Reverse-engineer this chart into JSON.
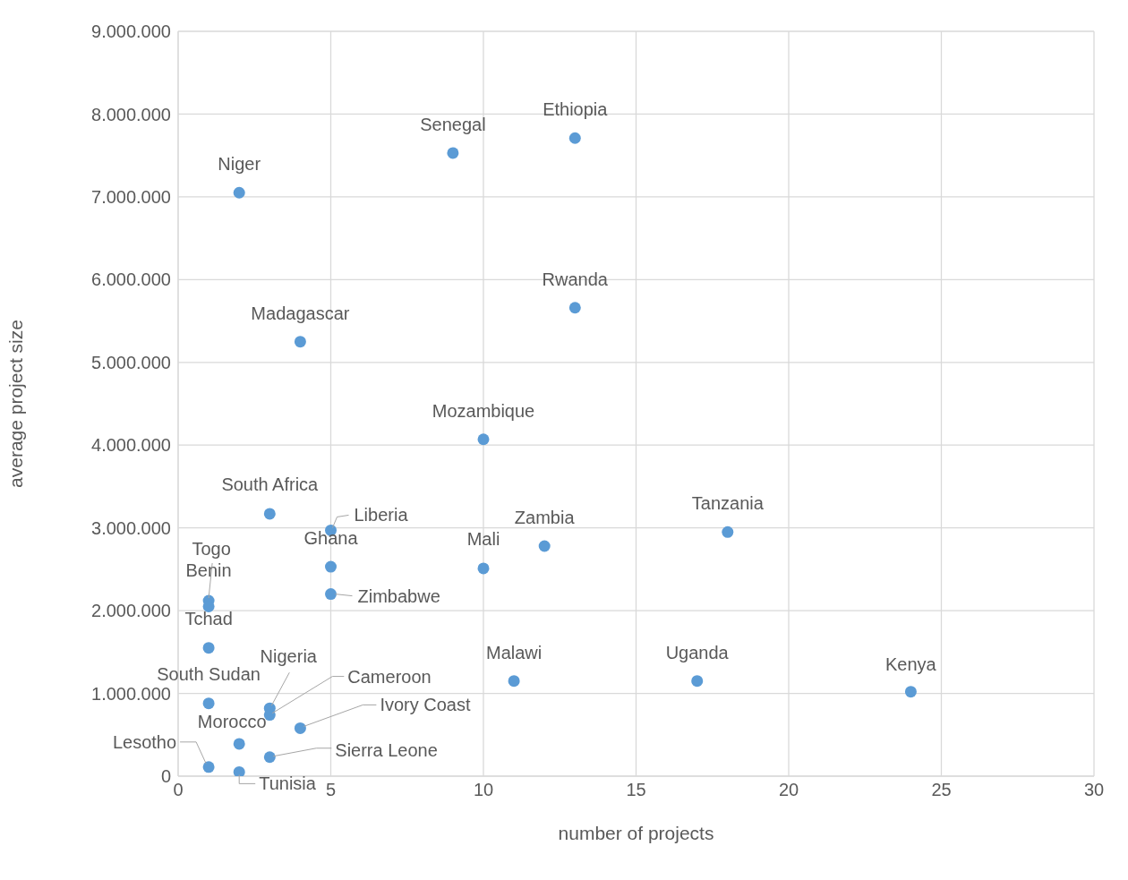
{
  "chart_data": {
    "type": "scatter",
    "xlabel": "number of projects",
    "ylabel": "average project size",
    "x": [
      2,
      9,
      13,
      13,
      4,
      10,
      3,
      5,
      18,
      12,
      5,
      10,
      5,
      1,
      1,
      1,
      11,
      17,
      24,
      1,
      3,
      3,
      4,
      2,
      3,
      1,
      2
    ],
    "series": [
      {
        "color": "#5b9bd5",
        "values": [
          7050000,
          7530000,
          7710000,
          5660000,
          5250000,
          4070000,
          3170000,
          2970000,
          2950000,
          2780000,
          2530000,
          2510000,
          2200000,
          2120000,
          2050000,
          1550000,
          1150000,
          1150000,
          1020000,
          880000,
          820000,
          740000,
          580000,
          390000,
          230000,
          110000,
          50000
        ]
      }
    ],
    "annotations": [
      {
        "text": "Niger",
        "x": 2,
        "y": 7050000
      },
      {
        "text": "Senegal",
        "x": 9,
        "y": 7530000
      },
      {
        "text": "Ethiopia",
        "x": 13,
        "y": 7710000
      },
      {
        "text": "Rwanda",
        "x": 13,
        "y": 5660000
      },
      {
        "text": "Madagascar",
        "x": 4,
        "y": 5250000
      },
      {
        "text": "Mozambique",
        "x": 10,
        "y": 4070000
      },
      {
        "text": "South Africa",
        "x": 3,
        "y": 3170000
      },
      {
        "text": "Liberia",
        "x": 5,
        "y": 2970000
      },
      {
        "text": "Tanzania",
        "x": 18,
        "y": 2950000
      },
      {
        "text": "Zambia",
        "x": 12,
        "y": 2780000
      },
      {
        "text": "Ghana",
        "x": 5,
        "y": 2530000
      },
      {
        "text": "Mali",
        "x": 10,
        "y": 2510000
      },
      {
        "text": "Zimbabwe",
        "x": 5,
        "y": 2200000
      },
      {
        "text": "Togo",
        "x": 1,
        "y": 2120000
      },
      {
        "text": "Benin",
        "x": 1,
        "y": 2050000
      },
      {
        "text": "Tchad",
        "x": 1,
        "y": 1550000
      },
      {
        "text": "Malawi",
        "x": 11,
        "y": 1150000
      },
      {
        "text": "Uganda",
        "x": 17,
        "y": 1150000
      },
      {
        "text": "Kenya",
        "x": 24,
        "y": 1020000
      },
      {
        "text": "South Sudan",
        "x": 1,
        "y": 880000
      },
      {
        "text": "Nigeria",
        "x": 3,
        "y": 820000
      },
      {
        "text": "Cameroon",
        "x": 3,
        "y": 740000
      },
      {
        "text": "Ivory Coast",
        "x": 4,
        "y": 580000
      },
      {
        "text": "Morocco",
        "x": 2,
        "y": 390000
      },
      {
        "text": "Sierra Leone",
        "x": 3,
        "y": 230000
      },
      {
        "text": "Lesotho",
        "x": 1,
        "y": 110000
      },
      {
        "text": "Tunisia",
        "x": 2,
        "y": 50000
      }
    ],
    "xlim": [
      0,
      30
    ],
    "xticks": [
      0,
      5,
      10,
      15,
      20,
      25,
      30
    ],
    "ylim": [
      0,
      9000000
    ],
    "yticks": [
      {
        "value": 0,
        "label": "0"
      },
      {
        "value": 1000000,
        "label": "1.000.000"
      },
      {
        "value": 2000000,
        "label": "2.000.000"
      },
      {
        "value": 3000000,
        "label": "3.000.000"
      },
      {
        "value": 4000000,
        "label": "4.000.000"
      },
      {
        "value": 5000000,
        "label": "5.000.000"
      },
      {
        "value": 6000000,
        "label": "6.000.000"
      },
      {
        "value": 7000000,
        "label": "7.000.000"
      },
      {
        "value": 8000000,
        "label": "8.000.000"
      },
      {
        "value": 9000000,
        "label": "9.000.000"
      }
    ],
    "grid": true,
    "marker": "circle"
  }
}
